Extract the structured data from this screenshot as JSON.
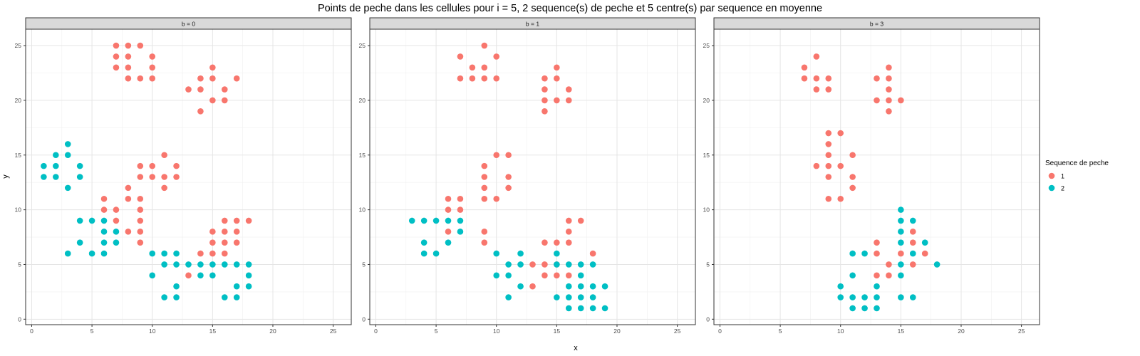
{
  "chart_data": {
    "type": "scatter",
    "title": "Points de peche dans les cellules pour i = 5, 2 sequence(s) de peche et 5 centre(s) par sequence en moyenne",
    "xlabel": "x",
    "ylabel": "y",
    "xlim": [
      -0.5,
      26.5
    ],
    "ylim": [
      -0.5,
      26.5
    ],
    "xticks": [
      0,
      5,
      10,
      15,
      20,
      25
    ],
    "yticks": [
      0,
      5,
      10,
      15,
      20,
      25
    ],
    "grid": true,
    "legend": {
      "title": "Sequence de peche",
      "position": "right",
      "entries": [
        {
          "label": "1",
          "color": "#F8766D"
        },
        {
          "label": "2",
          "color": "#00BFC4"
        }
      ]
    },
    "facets": [
      {
        "label": "b = 0",
        "series": [
          {
            "name": "1",
            "color": "#F8766D",
            "points": [
              [
                7,
                25
              ],
              [
                8,
                25
              ],
              [
                9,
                25
              ],
              [
                7,
                24
              ],
              [
                8,
                24
              ],
              [
                10,
                24
              ],
              [
                7,
                23
              ],
              [
                8,
                23
              ],
              [
                10,
                23
              ],
              [
                8,
                22
              ],
              [
                9,
                22
              ],
              [
                10,
                22
              ],
              [
                15,
                23
              ],
              [
                14,
                22
              ],
              [
                15,
                22
              ],
              [
                17,
                22
              ],
              [
                13,
                21
              ],
              [
                14,
                21
              ],
              [
                16,
                21
              ],
              [
                15,
                20
              ],
              [
                16,
                20
              ],
              [
                14,
                19
              ],
              [
                11,
                15
              ],
              [
                9,
                14
              ],
              [
                10,
                14
              ],
              [
                12,
                14
              ],
              [
                9,
                13
              ],
              [
                10,
                13
              ],
              [
                11,
                13
              ],
              [
                12,
                13
              ],
              [
                11,
                12
              ],
              [
                8,
                12
              ],
              [
                6,
                11
              ],
              [
                8,
                11
              ],
              [
                9,
                11
              ],
              [
                6,
                10
              ],
              [
                7,
                10
              ],
              [
                9,
                10
              ],
              [
                7,
                9
              ],
              [
                9,
                9
              ],
              [
                8,
                8
              ],
              [
                9,
                8
              ],
              [
                9,
                7
              ],
              [
                16,
                9
              ],
              [
                17,
                9
              ],
              [
                18,
                9
              ],
              [
                15,
                8
              ],
              [
                16,
                8
              ],
              [
                17,
                8
              ],
              [
                15,
                7
              ],
              [
                16,
                7
              ],
              [
                17,
                7
              ],
              [
                14,
                6
              ],
              [
                15,
                6
              ],
              [
                16,
                6
              ],
              [
                13,
                4
              ]
            ]
          },
          {
            "name": "2",
            "color": "#00BFC4",
            "points": [
              [
                3,
                16
              ],
              [
                2,
                15
              ],
              [
                3,
                15
              ],
              [
                1,
                14
              ],
              [
                2,
                14
              ],
              [
                4,
                14
              ],
              [
                1,
                13
              ],
              [
                2,
                13
              ],
              [
                4,
                13
              ],
              [
                3,
                12
              ],
              [
                4,
                9
              ],
              [
                5,
                9
              ],
              [
                6,
                9
              ],
              [
                6,
                8
              ],
              [
                7,
                8
              ],
              [
                4,
                7
              ],
              [
                6,
                7
              ],
              [
                7,
                7
              ],
              [
                3,
                6
              ],
              [
                5,
                6
              ],
              [
                6,
                6
              ],
              [
                10,
                6
              ],
              [
                11,
                6
              ],
              [
                12,
                6
              ],
              [
                11,
                5
              ],
              [
                12,
                5
              ],
              [
                13,
                5
              ],
              [
                14,
                5
              ],
              [
                15,
                5
              ],
              [
                16,
                5
              ],
              [
                17,
                5
              ],
              [
                18,
                5
              ],
              [
                10,
                4
              ],
              [
                14,
                4
              ],
              [
                15,
                4
              ],
              [
                18,
                4
              ],
              [
                12,
                3
              ],
              [
                17,
                3
              ],
              [
                18,
                3
              ],
              [
                11,
                2
              ],
              [
                12,
                2
              ],
              [
                16,
                2
              ],
              [
                17,
                2
              ]
            ]
          }
        ]
      },
      {
        "label": "b = 1",
        "series": [
          {
            "name": "1",
            "color": "#F8766D",
            "points": [
              [
                9,
                25
              ],
              [
                7,
                24
              ],
              [
                10,
                24
              ],
              [
                8,
                23
              ],
              [
                9,
                23
              ],
              [
                15,
                23
              ],
              [
                7,
                22
              ],
              [
                8,
                22
              ],
              [
                9,
                22
              ],
              [
                10,
                22
              ],
              [
                14,
                22
              ],
              [
                15,
                22
              ],
              [
                14,
                21
              ],
              [
                16,
                21
              ],
              [
                14,
                20
              ],
              [
                15,
                20
              ],
              [
                16,
                20
              ],
              [
                14,
                19
              ],
              [
                10,
                15
              ],
              [
                11,
                15
              ],
              [
                9,
                14
              ],
              [
                9,
                13
              ],
              [
                11,
                13
              ],
              [
                9,
                12
              ],
              [
                11,
                12
              ],
              [
                6,
                11
              ],
              [
                7,
                11
              ],
              [
                9,
                11
              ],
              [
                10,
                11
              ],
              [
                6,
                10
              ],
              [
                7,
                10
              ],
              [
                9,
                8
              ],
              [
                6,
                8
              ],
              [
                9,
                7
              ],
              [
                14,
                7
              ],
              [
                15,
                7
              ],
              [
                16,
                9
              ],
              [
                17,
                9
              ],
              [
                16,
                8
              ],
              [
                16,
                7
              ],
              [
                18,
                6
              ],
              [
                13,
                5
              ],
              [
                14,
                5
              ],
              [
                15,
                5
              ],
              [
                14,
                4
              ],
              [
                15,
                4
              ],
              [
                16,
                4
              ],
              [
                13,
                3
              ]
            ]
          },
          {
            "name": "2",
            "color": "#00BFC4",
            "points": [
              [
                3,
                9
              ],
              [
                4,
                9
              ],
              [
                5,
                9
              ],
              [
                6,
                9
              ],
              [
                7,
                9
              ],
              [
                7,
                8
              ],
              [
                4,
                7
              ],
              [
                6,
                7
              ],
              [
                4,
                6
              ],
              [
                5,
                6
              ],
              [
                10,
                6
              ],
              [
                12,
                6
              ],
              [
                15,
                6
              ],
              [
                11,
                5
              ],
              [
                12,
                5
              ],
              [
                15,
                5
              ],
              [
                16,
                5
              ],
              [
                17,
                5
              ],
              [
                18,
                5
              ],
              [
                10,
                4
              ],
              [
                11,
                4
              ],
              [
                17,
                4
              ],
              [
                12,
                3
              ],
              [
                16,
                3
              ],
              [
                17,
                3
              ],
              [
                18,
                3
              ],
              [
                19,
                3
              ],
              [
                11,
                2
              ],
              [
                15,
                2
              ],
              [
                16,
                2
              ],
              [
                17,
                2
              ],
              [
                18,
                2
              ],
              [
                16,
                1
              ],
              [
                17,
                1
              ],
              [
                18,
                1
              ],
              [
                19,
                1
              ]
            ]
          }
        ]
      },
      {
        "label": "b = 3",
        "series": [
          {
            "name": "1",
            "color": "#F8766D",
            "points": [
              [
                8,
                24
              ],
              [
                7,
                23
              ],
              [
                14,
                23
              ],
              [
                7,
                22
              ],
              [
                8,
                22
              ],
              [
                9,
                22
              ],
              [
                13,
                22
              ],
              [
                14,
                22
              ],
              [
                8,
                21
              ],
              [
                9,
                21
              ],
              [
                14,
                21
              ],
              [
                13,
                20
              ],
              [
                14,
                20
              ],
              [
                15,
                20
              ],
              [
                14,
                19
              ],
              [
                9,
                17
              ],
              [
                10,
                17
              ],
              [
                9,
                16
              ],
              [
                9,
                15
              ],
              [
                11,
                15
              ],
              [
                8,
                14
              ],
              [
                9,
                14
              ],
              [
                10,
                14
              ],
              [
                9,
                13
              ],
              [
                11,
                13
              ],
              [
                11,
                12
              ],
              [
                9,
                11
              ],
              [
                10,
                11
              ],
              [
                16,
                8
              ],
              [
                13,
                7
              ],
              [
                16,
                7
              ],
              [
                13,
                6
              ],
              [
                15,
                6
              ],
              [
                17,
                6
              ],
              [
                14,
                5
              ],
              [
                16,
                5
              ],
              [
                13,
                4
              ],
              [
                14,
                4
              ]
            ]
          },
          {
            "name": "2",
            "color": "#00BFC4",
            "points": [
              [
                15,
                10
              ],
              [
                15,
                9
              ],
              [
                16,
                9
              ],
              [
                15,
                8
              ],
              [
                15,
                7
              ],
              [
                17,
                7
              ],
              [
                11,
                6
              ],
              [
                12,
                6
              ],
              [
                16,
                6
              ],
              [
                15,
                5
              ],
              [
                18,
                5
              ],
              [
                11,
                4
              ],
              [
                15,
                4
              ],
              [
                10,
                3
              ],
              [
                13,
                3
              ],
              [
                10,
                2
              ],
              [
                11,
                2
              ],
              [
                12,
                2
              ],
              [
                13,
                2
              ],
              [
                15,
                2
              ],
              [
                16,
                2
              ],
              [
                11,
                1
              ],
              [
                12,
                1
              ],
              [
                13,
                1
              ]
            ]
          }
        ]
      }
    ]
  }
}
